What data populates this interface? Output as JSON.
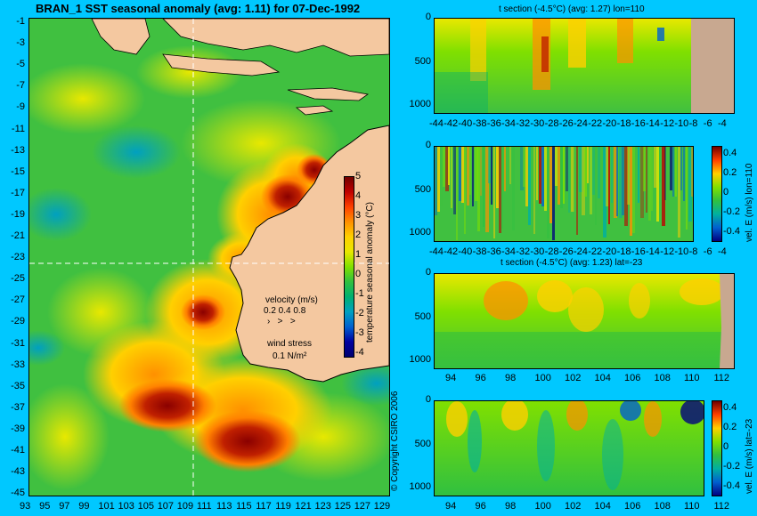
{
  "map": {
    "title": "BRAN_1 SST seasonal anomaly (avg: 1.11) for 07-Dec-1992",
    "y_ticks": [
      "-1",
      "-3",
      "-5",
      "-7",
      "-9",
      "-11",
      "-13",
      "-15",
      "-17",
      "-19",
      "-21",
      "-23",
      "-25",
      "-27",
      "-29",
      "-31",
      "-33",
      "-35",
      "-37",
      "-39",
      "-41",
      "-43",
      "-45"
    ],
    "x_ticks": [
      "93",
      "95",
      "97",
      "99",
      "101",
      "103",
      "105",
      "107",
      "109",
      "111",
      "113",
      "115",
      "117",
      "119",
      "121",
      "123",
      "125",
      "127",
      "129"
    ],
    "colorbar_ticks": [
      "5",
      "4",
      "3",
      "2",
      "1",
      "0",
      "-1",
      "-2",
      "-3",
      "-4"
    ],
    "colorbar_label": "temperature seasonal anomaly (°C)",
    "velocity_label": "velocity (m/s)",
    "velocity_scale": "0.2 0.4 0.8",
    "wind_label": "wind stress",
    "wind_scale": "0.1 N/m²",
    "copyright": "© Copyright CSIRO 2006",
    "crosshair": {
      "lon": 110,
      "lat": -23
    }
  },
  "panel1": {
    "title": "t section (-4.5°C) (avg: 1.27) lon=110",
    "y_ticks": [
      "0",
      "500",
      "1000"
    ],
    "x_ticks": [
      "-44",
      "-42",
      "-40",
      "-38",
      "-36",
      "-34",
      "-32",
      "-30",
      "-28",
      "-26",
      "-24",
      "-22",
      "-20",
      "-18",
      "-16",
      "-14",
      "-12",
      "-10",
      "-8",
      "-6",
      "-4"
    ]
  },
  "panel2": {
    "y_ticks": [
      "0",
      "500",
      "1000"
    ],
    "x_ticks": [
      "-44",
      "-42",
      "-40",
      "-38",
      "-36",
      "-34",
      "-32",
      "-30",
      "-28",
      "-26",
      "-24",
      "-22",
      "-20",
      "-18",
      "-16",
      "-14",
      "-12",
      "-10",
      "-8",
      "-6",
      "-4"
    ],
    "colorbar_ticks": [
      "0.4",
      "0.2",
      "0",
      "-0.2",
      "-0.4"
    ],
    "colorbar_label": "vel. E (m/s) lon=110"
  },
  "panel3": {
    "title": "t section (-4.5°C) (avg: 1.23) lat=-23",
    "y_ticks": [
      "0",
      "500",
      "1000"
    ],
    "x_ticks": [
      "94",
      "96",
      "98",
      "100",
      "102",
      "104",
      "106",
      "108",
      "110",
      "112"
    ]
  },
  "panel4": {
    "y_ticks": [
      "0",
      "500",
      "1000"
    ],
    "x_ticks": [
      "94",
      "96",
      "98",
      "100",
      "102",
      "104",
      "106",
      "108",
      "110",
      "112"
    ],
    "colorbar_ticks": [
      "0.4",
      "0.2",
      "0",
      "-0.2",
      "-0.4"
    ],
    "colorbar_label": "vel. E (m/s) lat=-23"
  },
  "colors": {
    "background": "#00c8ff",
    "land": "#f4c8a0",
    "ocean_base": "#40c040",
    "warm": "#ff9000",
    "hot": "#a00000"
  }
}
